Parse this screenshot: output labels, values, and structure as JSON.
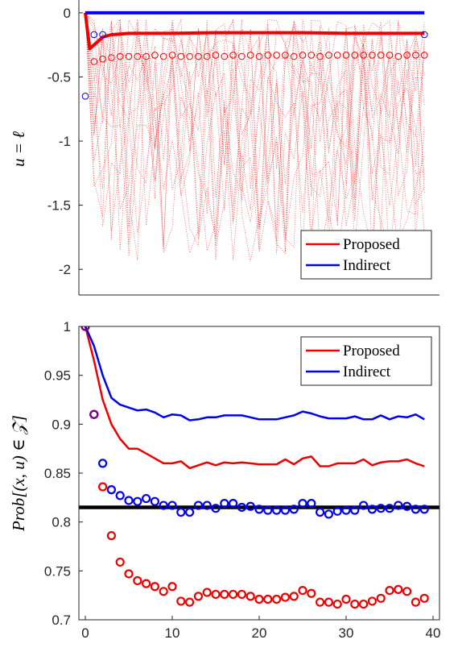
{
  "chart_data": [
    {
      "type": "line",
      "ylabel": "u = ℓ",
      "xlim": [
        0,
        40
      ],
      "ylim": [
        -2.2,
        0.1
      ],
      "xticks": [],
      "yticks": [
        0,
        -0.5,
        -1,
        -1.5,
        -2
      ],
      "ytick_labels": [
        "0",
        "-0.5",
        "-1",
        "-1.5",
        "-2"
      ],
      "grid": false,
      "legend_position": "bottom-right",
      "legend": [
        {
          "label": "Proposed",
          "color": "#ee0000"
        },
        {
          "label": "Indirect",
          "color": "#0000ee"
        }
      ],
      "series": [
        {
          "name": "Proposed",
          "style": "thick-line",
          "color": "#ee0000",
          "x": [
            0,
            0.5,
            1,
            2,
            3,
            4,
            5,
            6,
            8,
            10,
            15,
            20,
            25,
            30,
            35,
            39
          ],
          "y": [
            0,
            -0.28,
            -0.25,
            -0.19,
            -0.17,
            -0.165,
            -0.16,
            -0.16,
            -0.16,
            -0.16,
            -0.155,
            -0.155,
            -0.155,
            -0.16,
            -0.16,
            -0.16
          ]
        },
        {
          "name": "Indirect",
          "style": "thick-line",
          "color": "#0000ee",
          "x": [
            0,
            39
          ],
          "y": [
            0,
            0
          ]
        },
        {
          "name": "Proposed (markers)",
          "style": "markers",
          "color": "#ee0000",
          "x": [
            1,
            2,
            3,
            4,
            5,
            6,
            7,
            8,
            9,
            10,
            11,
            12,
            13,
            14,
            15,
            16,
            17,
            18,
            19,
            20,
            21,
            22,
            23,
            24,
            25,
            26,
            27,
            28,
            29,
            30,
            31,
            32,
            33,
            34,
            35,
            36,
            37,
            38,
            39
          ],
          "y": [
            -0.38,
            -0.36,
            -0.35,
            -0.34,
            -0.34,
            -0.34,
            -0.34,
            -0.33,
            -0.34,
            -0.33,
            -0.34,
            -0.34,
            -0.34,
            -0.34,
            -0.33,
            -0.34,
            -0.33,
            -0.34,
            -0.33,
            -0.34,
            -0.33,
            -0.33,
            -0.33,
            -0.34,
            -0.33,
            -0.33,
            -0.34,
            -0.33,
            -0.33,
            -0.33,
            -0.33,
            -0.33,
            -0.33,
            -0.33,
            -0.33,
            -0.34,
            -0.33,
            -0.33,
            -0.33
          ]
        },
        {
          "name": "Indirect (markers)",
          "style": "markers",
          "color": "#0000ee",
          "x": [
            0,
            1,
            2,
            39
          ],
          "y": [
            -0.65,
            -0.17,
            -0.17,
            -0.17
          ]
        }
      ]
    },
    {
      "type": "line",
      "ylabel": "Prob[(x, u) ∈ 𝒵]",
      "xlim": [
        0,
        40
      ],
      "ylim": [
        0.7,
        1.0
      ],
      "xticks": [
        0,
        10,
        20,
        30,
        40
      ],
      "xtick_labels": [
        "0",
        "10",
        "20",
        "30",
        "40"
      ],
      "yticks": [
        0.7,
        0.75,
        0.8,
        0.85,
        0.9,
        0.95,
        1
      ],
      "ytick_labels": [
        "0.7",
        "0.75",
        "0.8",
        "0.85",
        "0.9",
        "0.95",
        "1"
      ],
      "grid": false,
      "legend_position": "top-right",
      "legend": [
        {
          "label": "Proposed",
          "color": "#ee0000"
        },
        {
          "label": "Indirect",
          "color": "#0000ee"
        }
      ],
      "reference_line": {
        "y": 0.815,
        "color": "#000000"
      },
      "series": [
        {
          "name": "Proposed",
          "style": "line",
          "color": "#ee0000",
          "x": [
            0,
            1,
            2,
            3,
            4,
            5,
            6,
            7,
            8,
            9,
            10,
            11,
            12,
            13,
            14,
            15,
            16,
            17,
            18,
            19,
            20,
            21,
            22,
            23,
            24,
            25,
            26,
            27,
            28,
            29,
            30,
            31,
            32,
            33,
            34,
            35,
            36,
            37,
            38,
            39
          ],
          "y": [
            1.0,
            0.965,
            0.925,
            0.9,
            0.885,
            0.875,
            0.875,
            0.87,
            0.865,
            0.86,
            0.86,
            0.862,
            0.855,
            0.858,
            0.861,
            0.858,
            0.861,
            0.86,
            0.861,
            0.86,
            0.859,
            0.859,
            0.859,
            0.864,
            0.859,
            0.865,
            0.867,
            0.857,
            0.857,
            0.86,
            0.86,
            0.86,
            0.864,
            0.858,
            0.861,
            0.862,
            0.862,
            0.864,
            0.86,
            0.857
          ]
        },
        {
          "name": "Indirect",
          "style": "line",
          "color": "#0000ee",
          "x": [
            0,
            1,
            2,
            3,
            4,
            5,
            6,
            7,
            8,
            9,
            10,
            11,
            12,
            13,
            14,
            15,
            16,
            17,
            18,
            19,
            20,
            21,
            22,
            23,
            24,
            25,
            26,
            27,
            28,
            29,
            30,
            31,
            32,
            33,
            34,
            35,
            36,
            37,
            38,
            39
          ],
          "y": [
            1.0,
            0.98,
            0.95,
            0.927,
            0.92,
            0.917,
            0.914,
            0.915,
            0.912,
            0.907,
            0.91,
            0.909,
            0.904,
            0.905,
            0.907,
            0.907,
            0.909,
            0.909,
            0.909,
            0.907,
            0.905,
            0.905,
            0.905,
            0.907,
            0.909,
            0.913,
            0.911,
            0.908,
            0.906,
            0.906,
            0.906,
            0.908,
            0.905,
            0.905,
            0.909,
            0.905,
            0.908,
            0.907,
            0.91,
            0.905
          ]
        },
        {
          "name": "Proposed (markers)",
          "style": "markers",
          "color": "#ee0000",
          "x": [
            0,
            1,
            2,
            3,
            4,
            5,
            6,
            7,
            8,
            9,
            10,
            11,
            12,
            13,
            14,
            15,
            16,
            17,
            18,
            19,
            20,
            21,
            22,
            23,
            24,
            25,
            26,
            27,
            28,
            29,
            30,
            31,
            32,
            33,
            34,
            35,
            36,
            37,
            38,
            39
          ],
          "y": [
            1.0,
            0.91,
            0.836,
            0.786,
            0.759,
            0.747,
            0.74,
            0.737,
            0.734,
            0.729,
            0.734,
            0.719,
            0.718,
            0.724,
            0.728,
            0.726,
            0.726,
            0.726,
            0.726,
            0.724,
            0.721,
            0.721,
            0.721,
            0.723,
            0.724,
            0.73,
            0.727,
            0.718,
            0.718,
            0.716,
            0.721,
            0.716,
            0.716,
            0.719,
            0.722,
            0.73,
            0.731,
            0.729,
            0.718,
            0.722
          ]
        },
        {
          "name": "Indirect (markers)",
          "style": "markers",
          "color": "#0000ee",
          "x": [
            0,
            1,
            2,
            3,
            4,
            5,
            6,
            7,
            8,
            9,
            10,
            11,
            12,
            13,
            14,
            15,
            16,
            17,
            18,
            19,
            20,
            21,
            22,
            23,
            24,
            25,
            26,
            27,
            28,
            29,
            30,
            31,
            32,
            33,
            34,
            35,
            36,
            37,
            38,
            39
          ],
          "y": [
            1.0,
            0.91,
            0.86,
            0.833,
            0.827,
            0.822,
            0.821,
            0.824,
            0.821,
            0.817,
            0.817,
            0.81,
            0.81,
            0.817,
            0.817,
            0.814,
            0.819,
            0.819,
            0.815,
            0.816,
            0.813,
            0.812,
            0.812,
            0.812,
            0.813,
            0.819,
            0.819,
            0.81,
            0.808,
            0.811,
            0.812,
            0.812,
            0.817,
            0.813,
            0.814,
            0.814,
            0.817,
            0.816,
            0.813,
            0.813
          ]
        },
        {
          "name": "Overlap (markers)",
          "style": "markers",
          "color": "#800080",
          "x": [
            0,
            1
          ],
          "y": [
            1.0,
            0.91
          ]
        }
      ]
    }
  ]
}
